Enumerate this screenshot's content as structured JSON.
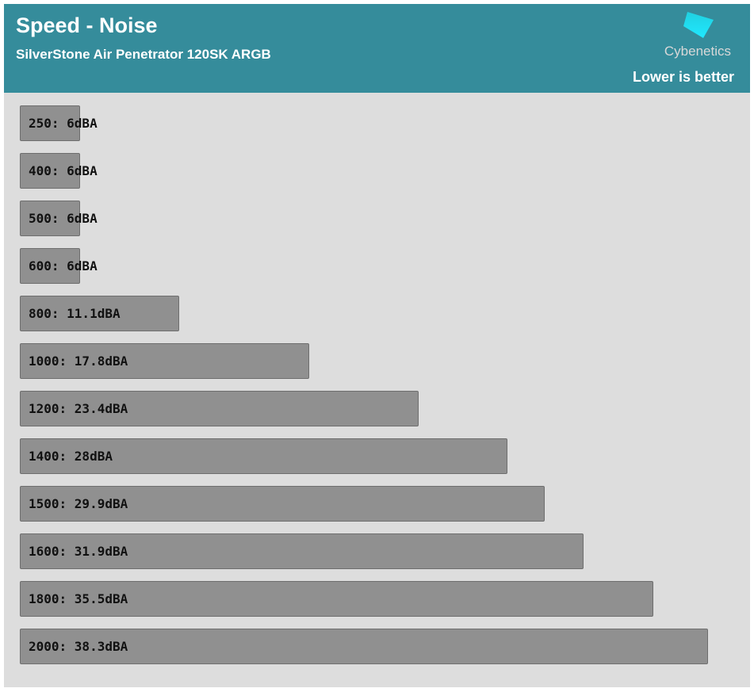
{
  "header": {
    "title": "Speed - Noise",
    "subtitle": "SilverStone Air Penetrator 120SK ARGB",
    "note": "Lower is better",
    "logo_text": "Cybenetics"
  },
  "colors": {
    "header": "#358c9b",
    "bar": "#909090",
    "background": "#dddddd"
  },
  "chart_data": {
    "type": "bar",
    "orientation": "horizontal",
    "title": "Speed - Noise",
    "subtitle": "SilverStone Air Penetrator 120SK ARGB",
    "categories": [
      "250",
      "400",
      "500",
      "600",
      "800",
      "1000",
      "1200",
      "1400",
      "1500",
      "1600",
      "1800",
      "2000"
    ],
    "values": [
      6,
      6,
      6,
      6,
      11.1,
      17.8,
      23.4,
      28,
      29.9,
      31.9,
      35.5,
      38.3
    ],
    "labels": [
      "250: 6dBA",
      "400: 6dBA",
      "500: 6dBA",
      "600: 6dBA",
      "800: 11.1dBA",
      "1000: 17.8dBA",
      "1200: 23.4dBA",
      "1400: 28dBA",
      "1500: 29.9dBA",
      "1600: 31.9dBA",
      "1800: 35.5dBA",
      "2000: 38.3dBA"
    ],
    "unit": "dBA",
    "grid": false
  }
}
